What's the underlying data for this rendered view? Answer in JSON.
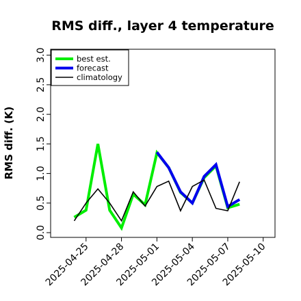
{
  "chart_data": {
    "type": "line",
    "title": "RMS diff., layer 4 temperature",
    "ylabel": "RMS diff. (K)",
    "xlabel": "",
    "xlim": [
      "2025-04-22",
      "2025-05-11"
    ],
    "ylim": [
      -0.08,
      3.1
    ],
    "yticks": [
      "0.0",
      "0.5",
      "1.0",
      "1.5",
      "2.0",
      "2.5",
      "3.0"
    ],
    "xticks": [
      {
        "label": "2025-04-25",
        "date": "2025-04-25",
        "color": "#000000"
      },
      {
        "label": "2025-04-28",
        "date": "2025-04-28",
        "color": "#000000"
      },
      {
        "label": "2025-05-01",
        "date": "2025-05-01",
        "color": "#228b22"
      },
      {
        "label": "2025-05-04",
        "date": "2025-05-04",
        "color": "#000000"
      },
      {
        "label": "2025-05-07",
        "date": "2025-05-07",
        "color": "#000000"
      },
      {
        "label": "2025-05-10",
        "date": "2025-05-10",
        "color": "#000000"
      }
    ],
    "grid": false,
    "legend_position": "top-left",
    "series": [
      {
        "name": "best est.",
        "color": "#00ee00",
        "width": 4,
        "points": [
          [
            "2025-04-24",
            0.26
          ],
          [
            "2025-04-25",
            0.38
          ],
          [
            "2025-04-26",
            1.5
          ],
          [
            "2025-04-27",
            0.38
          ],
          [
            "2025-04-28",
            0.08
          ],
          [
            "2025-04-29",
            0.65
          ],
          [
            "2025-04-30",
            0.47
          ],
          [
            "2025-05-01",
            1.35
          ],
          [
            "2025-05-02",
            1.1
          ],
          [
            "2025-05-03",
            0.68
          ],
          [
            "2025-05-04",
            0.5
          ],
          [
            "2025-05-05",
            0.93
          ],
          [
            "2025-05-06",
            1.13
          ],
          [
            "2025-05-07",
            0.42
          ],
          [
            "2025-05-08",
            0.48
          ]
        ]
      },
      {
        "name": "forecast",
        "color": "#0000ee",
        "width": 4,
        "points": [
          [
            "2025-05-01",
            1.36
          ],
          [
            "2025-05-02",
            1.1
          ],
          [
            "2025-05-03",
            0.69
          ],
          [
            "2025-05-04",
            0.5
          ],
          [
            "2025-05-05",
            0.95
          ],
          [
            "2025-05-06",
            1.15
          ],
          [
            "2025-05-07",
            0.44
          ],
          [
            "2025-05-08",
            0.56
          ]
        ]
      },
      {
        "name": "climatology",
        "color": "#000000",
        "width": 1.6,
        "points": [
          [
            "2025-04-24",
            0.2
          ],
          [
            "2025-04-25",
            0.5
          ],
          [
            "2025-04-26",
            0.74
          ],
          [
            "2025-04-27",
            0.5
          ],
          [
            "2025-04-28",
            0.2
          ],
          [
            "2025-04-29",
            0.69
          ],
          [
            "2025-04-30",
            0.45
          ],
          [
            "2025-05-01",
            0.78
          ],
          [
            "2025-05-02",
            0.87
          ],
          [
            "2025-05-03",
            0.37
          ],
          [
            "2025-05-04",
            0.78
          ],
          [
            "2025-05-05",
            0.89
          ],
          [
            "2025-05-06",
            0.41
          ],
          [
            "2025-05-07",
            0.37
          ],
          [
            "2025-05-08",
            0.86
          ]
        ]
      }
    ]
  }
}
